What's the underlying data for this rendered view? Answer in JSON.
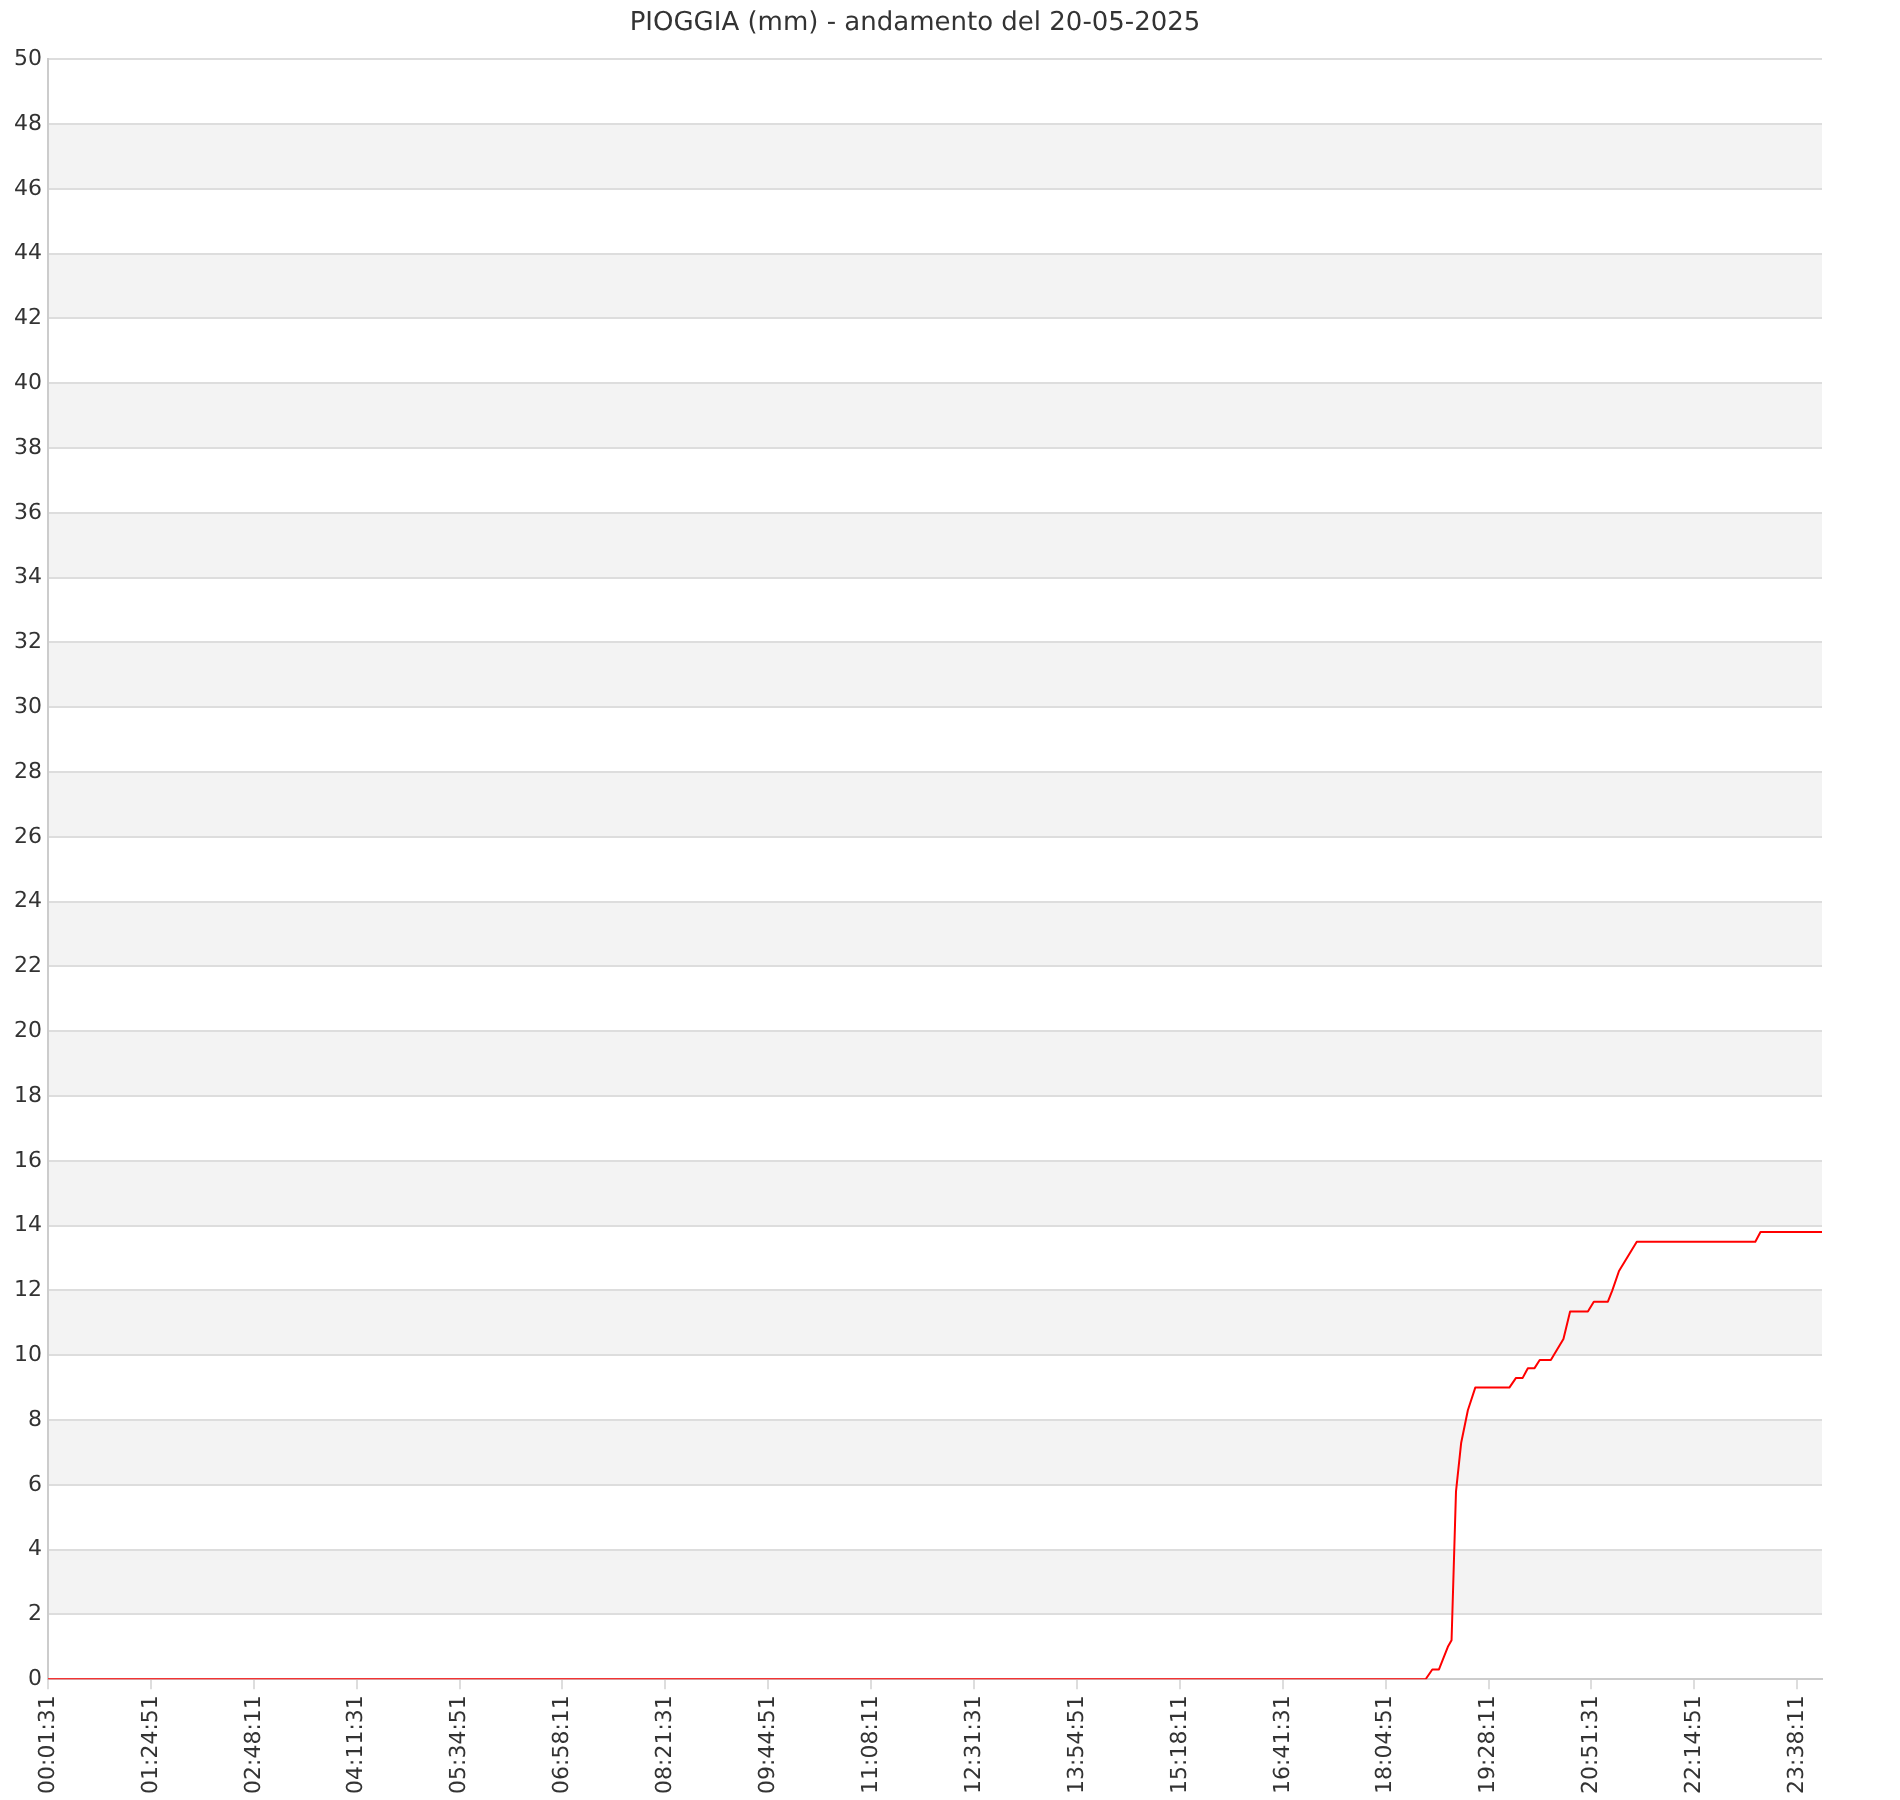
{
  "chart_data": {
    "type": "line",
    "title": "PIOGGIA (mm) - andamento del 20-05-2025",
    "x": [
      0.0253,
      18.62,
      18.71,
      18.8,
      18.92,
      18.97,
      19.03,
      19.1,
      19.19,
      19.29,
      19.75,
      19.84,
      19.93,
      20.0,
      20.09,
      20.16,
      20.31,
      20.48,
      20.57,
      20.81,
      20.89,
      21.08,
      21.14,
      21.23,
      21.47,
      23.07,
      23.14,
      23.97
    ],
    "series": [
      {
        "color": "#ff0000",
        "values": [
          0,
          0,
          0.3,
          0.3,
          1.0,
          1.2,
          5.8,
          7.3,
          8.3,
          9.0,
          9.0,
          9.3,
          9.3,
          9.6,
          9.6,
          9.85,
          9.85,
          10.5,
          11.35,
          11.35,
          11.65,
          11.65,
          12.0,
          12.6,
          13.5,
          13.5,
          13.8,
          13.8
        ]
      }
    ],
    "xlim": [
      0.0253,
      23.97
    ],
    "xticks": [
      {
        "value": 0.0253,
        "label": "00:01:31"
      },
      {
        "value": 1.4142,
        "label": "01:24:51"
      },
      {
        "value": 2.8031,
        "label": "02:48:11"
      },
      {
        "value": 4.1919,
        "label": "04:11:31"
      },
      {
        "value": 5.5808,
        "label": "05:34:51"
      },
      {
        "value": 6.9697,
        "label": "06:58:11"
      },
      {
        "value": 8.3586,
        "label": "08:21:31"
      },
      {
        "value": 9.7475,
        "label": "09:44:51"
      },
      {
        "value": 11.1364,
        "label": "11:08:11"
      },
      {
        "value": 12.5253,
        "label": "12:31:31"
      },
      {
        "value": 13.9142,
        "label": "13:54:51"
      },
      {
        "value": 15.3031,
        "label": "15:18:11"
      },
      {
        "value": 16.6919,
        "label": "16:41:31"
      },
      {
        "value": 18.0808,
        "label": "18:04:51"
      },
      {
        "value": 19.4697,
        "label": "19:28:11"
      },
      {
        "value": 20.8586,
        "label": "20:51:31"
      },
      {
        "value": 22.2475,
        "label": "22:14:51"
      },
      {
        "value": 23.6364,
        "label": "23:38:11"
      }
    ],
    "ylim": [
      0,
      50
    ],
    "yticks": [
      0,
      2,
      4,
      6,
      8,
      10,
      12,
      14,
      16,
      18,
      20,
      22,
      24,
      26,
      28,
      30,
      32,
      34,
      36,
      38,
      40,
      42,
      44,
      46,
      48,
      50
    ],
    "grid": "y",
    "legend": false,
    "marker": "none",
    "line_style": "solid"
  }
}
